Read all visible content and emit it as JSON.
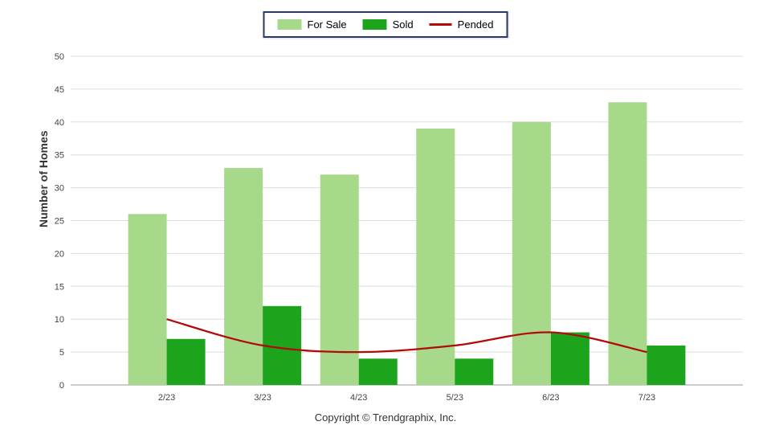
{
  "ylabel": "Number of Homes",
  "footer": "Copyright © Trendgraphix, Inc.",
  "legend": {
    "items": [
      {
        "label": "For Sale",
        "color": "#a6d98a",
        "type": "box"
      },
      {
        "label": "Sold",
        "color": "#1ca41c",
        "type": "box"
      },
      {
        "label": "Pended",
        "color": "#b30909",
        "type": "line"
      }
    ]
  },
  "chart_data": {
    "type": "bar",
    "title": "",
    "xlabel": "",
    "ylabel": "Number of Homes",
    "categories": [
      "2/23",
      "3/23",
      "4/23",
      "5/23",
      "6/23",
      "7/23"
    ],
    "series": [
      {
        "name": "For Sale",
        "type": "bar",
        "color": "#a6d98a",
        "values": [
          26,
          33,
          32,
          39,
          40,
          43
        ]
      },
      {
        "name": "Sold",
        "type": "bar",
        "color": "#1ca41c",
        "values": [
          7,
          12,
          4,
          4,
          8,
          6
        ]
      },
      {
        "name": "Pended",
        "type": "line",
        "color": "#b30909",
        "values": [
          10,
          6,
          5,
          6,
          8,
          5
        ]
      }
    ],
    "ylim": [
      0,
      50
    ],
    "ytick_step": 5,
    "grid": true,
    "grid_color": "#dddddd",
    "axis_color": "#999999",
    "tick_label_color": "#444444",
    "legend_position": "top-center"
  }
}
